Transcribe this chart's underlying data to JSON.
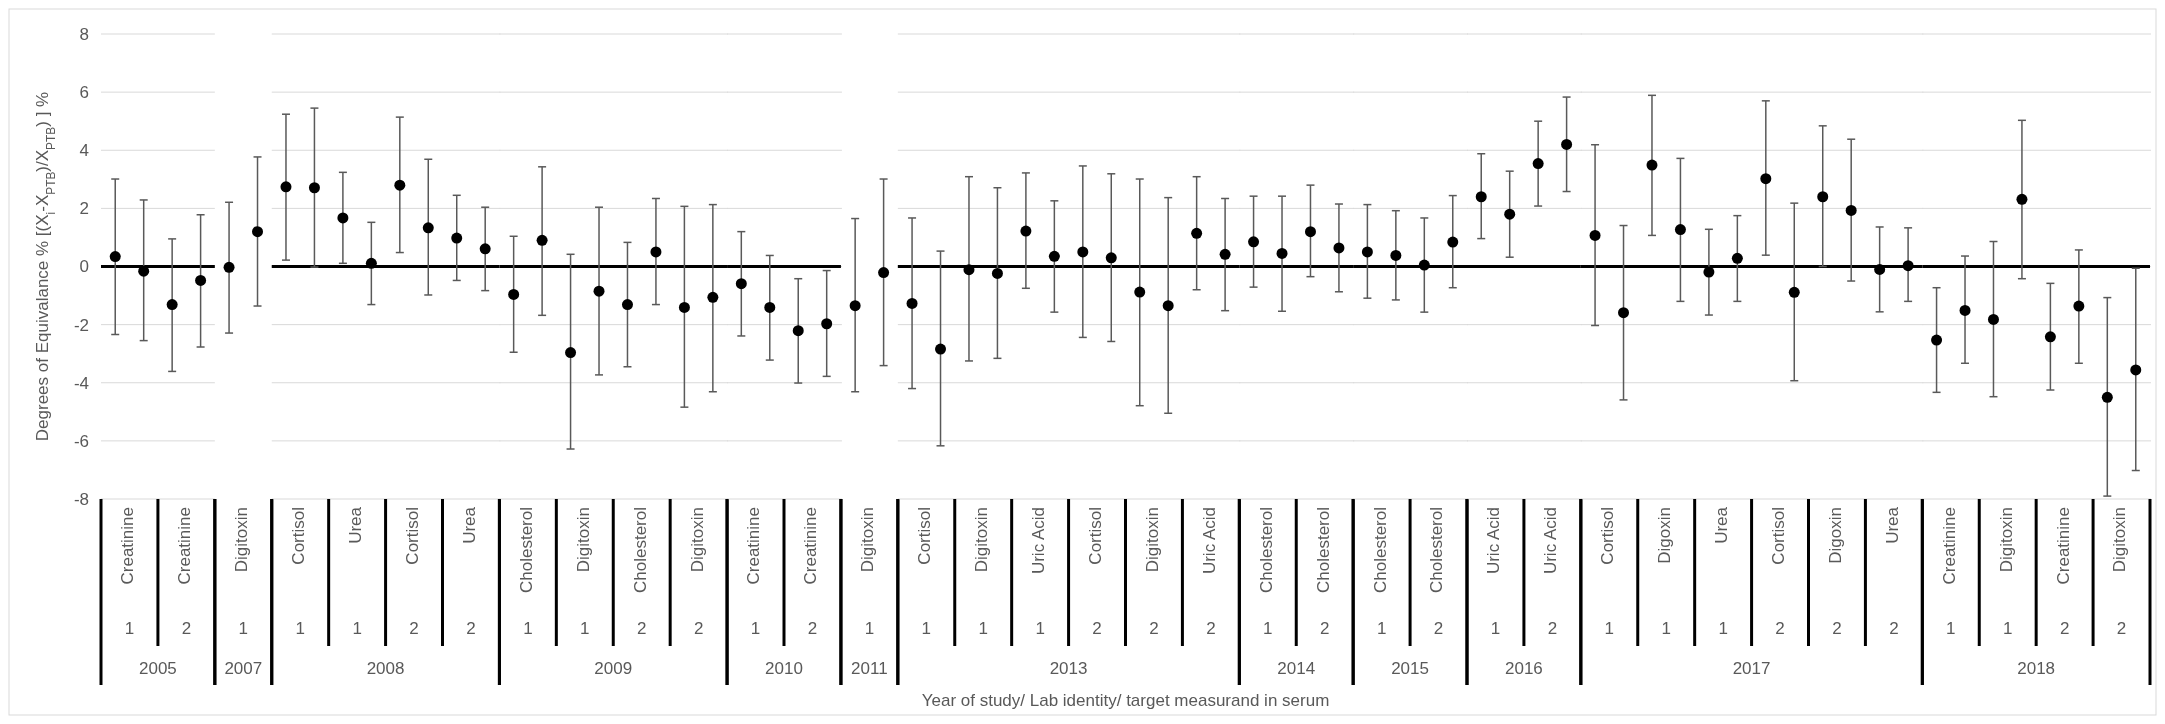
{
  "chart_data": [
    {
      "type": "scatter",
      "ylabel": "Degrees of Equivalance %  [(X$_{i}$-X$_{PTB}$)/X$_{PTB}$) ] %",
      "xlabel": "2005",
      "categories": [
        "Creatinine",
        "Creatinine"
      ],
      "series": [
        {
          "color": "#000000",
          "values": [
            0.34,
            -1.31
          ],
          "errors": [
            [
              -2.34,
              3.01
            ],
            [
              -3.61,
              0.95
            ]
          ]
        },
        {
          "color": "#000000",
          "values": [
            -0.16,
            -0.48
          ],
          "errors": [
            [
              -2.55,
              2.29
            ],
            [
              -2.77,
              1.78
            ]
          ]
        }
      ],
      "annotations": [
        "1",
        "2",
        "Year of study/ Lab identity/ target measurand in serum"
      ],
      "ylim": [
        -8,
        8
      ],
      "yticks": [
        -8,
        -6,
        -4,
        -2,
        0,
        2,
        4,
        6,
        8
      ],
      "grid": "y",
      "marker": "circle"
    },
    {
      "type": "scatter",
      "xlabel": "2007",
      "categories": [
        "Digitoxin"
      ],
      "series": [
        {
          "color": "#000000",
          "values": [
            -0.03
          ],
          "errors": [
            [
              -2.29,
              2.21
            ]
          ]
        },
        {
          "color": "#000000",
          "values": [
            1.2
          ],
          "errors": [
            [
              -1.36,
              3.77
            ]
          ]
        }
      ],
      "annotations": [
        "1"
      ],
      "ylim": [
        -8,
        8
      ],
      "yticks": [
        -8,
        -6,
        -4,
        -2,
        0,
        2,
        4,
        6,
        8
      ],
      "marker": "circle",
      "tick_labels": "x"
    },
    {
      "type": "scatter",
      "xlabel": "2008",
      "categories": [
        "Cortisol",
        "Urea",
        "Cortisol",
        "Urea"
      ],
      "series": [
        {
          "color": "#000000",
          "values": [
            2.74,
            1.67,
            2.8,
            0.98
          ],
          "errors": [
            [
              0.22,
              5.24
            ],
            [
              0.11,
              3.24
            ],
            [
              0.48,
              5.14
            ],
            [
              -0.48,
              2.45
            ]
          ]
        },
        {
          "color": "#000000",
          "values": [
            2.71,
            0.11,
            1.33,
            0.61
          ],
          "errors": [
            [
              -0.02,
              5.45
            ],
            [
              -1.31,
              1.52
            ],
            [
              -0.98,
              3.69
            ],
            [
              -0.83,
              2.04
            ]
          ]
        }
      ],
      "annotations": [
        "1",
        "1",
        "2",
        "2"
      ],
      "ylim": [
        -8,
        8
      ],
      "yticks": [
        -8,
        -6,
        -4,
        -2,
        0,
        2,
        4,
        6,
        8
      ],
      "grid": "y",
      "marker": "circle",
      "tick_labels": "x"
    },
    {
      "type": "scatter",
      "xlabel": "2009",
      "categories": [
        "Cholesterol",
        "Digitoxin",
        "Cholesterol",
        "Digitoxin"
      ],
      "series": [
        {
          "color": "#000000",
          "values": [
            -0.96,
            -2.96,
            -1.31,
            -1.41
          ],
          "errors": [
            [
              -2.95,
              1.04
            ],
            [
              -6.28,
              0.42
            ],
            [
              -3.45,
              0.83
            ],
            [
              -4.84,
              2.07
            ]
          ]
        },
        {
          "color": "#000000",
          "values": [
            0.9,
            -0.85,
            0.5,
            -1.06
          ],
          "errors": [
            [
              -1.68,
              3.43
            ],
            [
              -3.73,
              2.04
            ],
            [
              -1.31,
              2.34
            ],
            [
              -4.31,
              2.13
            ]
          ]
        }
      ],
      "annotations": [
        "1",
        "1",
        "2",
        "2"
      ],
      "ylim": [
        -8,
        8
      ],
      "yticks": [
        -8,
        -6,
        -4,
        -2,
        0,
        2,
        4,
        6,
        8
      ],
      "grid": "y",
      "marker": "circle",
      "tick_labels": "x"
    },
    {
      "type": "scatter",
      "xlabel": "2010",
      "categories": [
        "Creatinine",
        "Creatinine"
      ],
      "series": [
        {
          "color": "#000000",
          "values": [
            -0.59,
            -2.21
          ],
          "errors": [
            [
              -2.39,
              1.2
            ],
            [
              -4.01,
              -0.42
            ]
          ]
        },
        {
          "color": "#000000",
          "values": [
            -1.41,
            -1.97
          ],
          "errors": [
            [
              -3.22,
              0.38
            ],
            [
              -3.78,
              -0.14
            ]
          ]
        }
      ],
      "annotations": [
        "1",
        "2"
      ],
      "ylim": [
        -8,
        8
      ],
      "yticks": [
        -8,
        -6,
        -4,
        -2,
        0,
        2,
        4,
        6,
        8
      ],
      "grid": "y",
      "marker": "circle",
      "tick_labels": "x"
    },
    {
      "type": "scatter",
      "xlabel": "2011",
      "categories": [
        "Digitoxin"
      ],
      "series": [
        {
          "color": "#000000",
          "values": [
            -1.35
          ],
          "errors": [
            [
              -4.31,
              1.65
            ]
          ]
        },
        {
          "color": "#000000",
          "values": [
            -0.21
          ],
          "errors": [
            [
              -3.41,
              3.01
            ]
          ]
        }
      ],
      "annotations": [
        "1"
      ],
      "ylim": [
        -8,
        8
      ],
      "yticks": [
        -8,
        -6,
        -4,
        -2,
        0,
        2,
        4,
        6,
        8
      ],
      "marker": "circle",
      "tick_labels": "x"
    },
    {
      "type": "scatter",
      "xlabel": "2013",
      "categories": [
        "Cortisol",
        "Digitoxin",
        "Uric Acid",
        "Cortisol",
        "Digitoxin",
        "Uric Acid"
      ],
      "series": [
        {
          "color": "#000000",
          "values": [
            -1.27,
            -0.11,
            1.22,
            0.5,
            -0.88,
            1.14
          ],
          "errors": [
            [
              -4.2,
              1.67
            ],
            [
              -3.25,
              3.09
            ],
            [
              -0.75,
              3.22
            ],
            [
              -2.44,
              3.46
            ],
            [
              -4.79,
              3.01
            ],
            [
              -0.8,
              3.09
            ]
          ]
        },
        {
          "color": "#000000",
          "values": [
            -2.84,
            -0.24,
            0.35,
            0.3,
            -1.35,
            0.42
          ],
          "errors": [
            [
              -6.17,
              0.53
            ],
            [
              -3.16,
              2.71
            ],
            [
              -1.57,
              2.26
            ],
            [
              -2.58,
              3.19
            ],
            [
              -5.05,
              2.37
            ],
            [
              -1.52,
              2.34
            ]
          ]
        }
      ],
      "annotations": [
        "1",
        "1",
        "1",
        "2",
        "2",
        "2"
      ],
      "ylim": [
        -8,
        8
      ],
      "yticks": [
        -8,
        -6,
        -4,
        -2,
        0,
        2,
        4,
        6,
        8
      ],
      "grid": "y",
      "marker": "circle",
      "tick_labels": "x"
    },
    {
      "type": "scatter",
      "xlabel": "2014",
      "categories": [
        "Cholesterol",
        "Cholesterol"
      ],
      "series": [
        {
          "color": "#000000",
          "values": [
            0.85,
            1.2
          ],
          "errors": [
            [
              -0.71,
              2.42
            ],
            [
              -0.35,
              2.8
            ]
          ]
        },
        {
          "color": "#000000",
          "values": [
            0.45,
            0.64
          ],
          "errors": [
            [
              -1.54,
              2.42
            ],
            [
              -0.87,
              2.15
            ]
          ]
        }
      ],
      "annotations": [
        "1",
        "2"
      ],
      "ylim": [
        -8,
        8
      ],
      "yticks": [
        -8,
        -6,
        -4,
        -2,
        0,
        2,
        4,
        6,
        8
      ],
      "grid": "y",
      "marker": "circle",
      "tick_labels": "x"
    },
    {
      "type": "scatter",
      "xlabel": "2015",
      "categories": [
        "Cholesterol",
        "Cholesterol"
      ],
      "series": [
        {
          "color": "#000000",
          "values": [
            0.5,
            0.05
          ],
          "errors": [
            [
              -1.09,
              2.13
            ],
            [
              -1.57,
              1.67
            ]
          ]
        },
        {
          "color": "#000000",
          "values": [
            0.38,
            0.84
          ],
          "errors": [
            [
              -1.15,
              1.92
            ],
            [
              -0.73,
              2.44
            ]
          ]
        }
      ],
      "annotations": [
        "1",
        "2"
      ],
      "ylim": [
        -8,
        8
      ],
      "yticks": [
        -8,
        -6,
        -4,
        -2,
        0,
        2,
        4,
        6,
        8
      ],
      "grid": "y",
      "marker": "circle",
      "tick_labels": "x"
    },
    {
      "type": "scatter",
      "xlabel": "2016",
      "categories": [
        "Uric Acid",
        "Uric Acid"
      ],
      "series": [
        {
          "color": "#000000",
          "values": [
            2.4,
            3.54
          ],
          "errors": [
            [
              0.96,
              3.88
            ],
            [
              2.08,
              5.0
            ]
          ]
        },
        {
          "color": "#000000",
          "values": [
            1.8,
            4.2
          ],
          "errors": [
            [
              0.32,
              3.28
            ],
            [
              2.58,
              5.83
            ]
          ]
        }
      ],
      "annotations": [
        "1",
        "2"
      ],
      "ylim": [
        -8,
        8
      ],
      "yticks": [
        -8,
        -6,
        -4,
        -2,
        0,
        2,
        4,
        6,
        8
      ],
      "grid": "y",
      "marker": "circle",
      "tick_labels": "x"
    },
    {
      "type": "scatter",
      "xlabel": "2017",
      "categories": [
        "Cortisol",
        "Digoxin",
        "Urea",
        "Cortisol",
        "Digoxin",
        "Urea"
      ],
      "series": [
        {
          "color": "#000000",
          "values": [
            1.07,
            3.49,
            -0.19,
            3.02,
            2.4,
            -0.1
          ],
          "errors": [
            [
              -2.03,
              4.19
            ],
            [
              1.07,
              5.89
            ],
            [
              -1.67,
              1.28
            ],
            [
              0.39,
              5.7
            ],
            [
              0.0,
              4.84
            ],
            [
              -1.56,
              1.36
            ]
          ]
        },
        {
          "color": "#000000",
          "values": [
            -1.59,
            1.27,
            0.28,
            -0.89,
            1.93,
            0.03
          ],
          "errors": [
            [
              -4.59,
              1.41
            ],
            [
              -1.2,
              3.72
            ],
            [
              -1.2,
              1.75
            ],
            [
              -3.93,
              2.18
            ],
            [
              -0.5,
              4.38
            ],
            [
              -1.2,
              1.33
            ]
          ]
        }
      ],
      "annotations": [
        "1",
        "1",
        "1",
        "2",
        "2",
        "2"
      ],
      "ylim": [
        -8,
        8
      ],
      "yticks": [
        -8,
        -6,
        -4,
        -2,
        0,
        2,
        4,
        6,
        8
      ],
      "grid": "y",
      "marker": "circle",
      "tick_labels": "x"
    },
    {
      "type": "scatter",
      "xlabel": "2018",
      "categories": [
        "Creatinine",
        "Digitoxin",
        "Creatinine",
        "Digitoxin"
      ],
      "series": [
        {
          "color": "#000000",
          "values": [
            -2.53,
            -1.82,
            -2.42,
            -4.5
          ],
          "errors": [
            [
              -4.33,
              -0.73
            ],
            [
              -4.48,
              0.86
            ],
            [
              -4.25,
              -0.58
            ],
            [
              -7.9,
              -1.07
            ]
          ]
        },
        {
          "color": "#000000",
          "values": [
            -1.51,
            2.31,
            -1.36,
            -3.56
          ],
          "errors": [
            [
              -3.33,
              0.36
            ],
            [
              -0.42,
              5.03
            ],
            [
              -3.33,
              0.57
            ],
            [
              -7.02,
              -0.06
            ]
          ]
        }
      ],
      "annotations": [
        "1",
        "1",
        "2",
        "2"
      ],
      "ylim": [
        -8,
        8
      ],
      "yticks": [
        -8,
        -6,
        -4,
        -2,
        0,
        2,
        4,
        6,
        8
      ],
      "grid": "y",
      "marker": "circle",
      "tick_labels": "x"
    }
  ]
}
